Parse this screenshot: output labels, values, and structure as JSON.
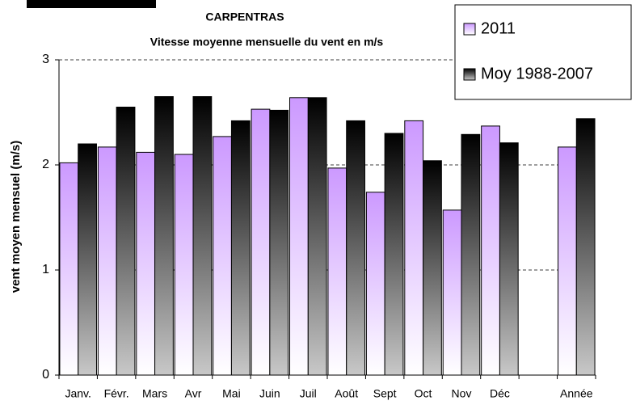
{
  "chart_data": {
    "type": "bar",
    "title": "CARPENTRAS",
    "subtitle": "Vitesse moyenne mensuelle du vent en m/s",
    "y_label": "vent moyen mensuel (m/s)",
    "categories": [
      "Janv.",
      "Févr.",
      "Mars",
      "Avr",
      "Mai",
      "Juin",
      "Juil",
      "Août",
      "Sept",
      "Oct",
      "Nov",
      "Déc",
      null,
      "Année"
    ],
    "series": [
      {
        "name": "2011",
        "color": "#cc99ff",
        "values": [
          2.02,
          2.17,
          2.12,
          2.1,
          2.27,
          2.53,
          2.64,
          1.97,
          1.74,
          2.42,
          1.57,
          2.37,
          null,
          2.17
        ]
      },
      {
        "name": "Moy 1988-2007",
        "color": "#000000",
        "values": [
          2.2,
          2.55,
          2.65,
          2.65,
          2.42,
          2.52,
          2.64,
          2.42,
          2.3,
          2.04,
          2.29,
          2.21,
          null,
          2.44
        ]
      }
    ],
    "ylim": [
      0,
      3
    ],
    "yticks": [
      0,
      1,
      2,
      3
    ],
    "grid": true,
    "legend": "upper right"
  }
}
